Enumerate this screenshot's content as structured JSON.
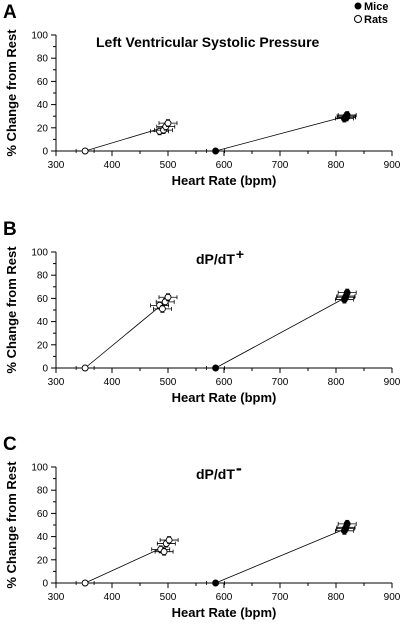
{
  "legend": [
    {
      "label": "Mice",
      "marker": "filled-circle"
    },
    {
      "label": "Rats",
      "marker": "open-circle"
    }
  ],
  "chart_data": [
    {
      "type": "scatter",
      "panel": "A",
      "title": "Left Ventricular Systolic Pressure",
      "title_sup": "",
      "xlabel": "Heart Rate (bpm)",
      "ylabel": "% Change from Rest",
      "xlim": [
        300,
        900
      ],
      "ylim": [
        0,
        100
      ],
      "xticks": [
        300,
        400,
        500,
        600,
        700,
        800,
        900
      ],
      "yticks": [
        0,
        20,
        40,
        60,
        80,
        100
      ],
      "series": [
        {
          "name": "Rats",
          "marker": "open",
          "points": [
            {
              "x": 352,
              "y": 0
            },
            {
              "x": 485,
              "y": 17
            },
            {
              "x": 492,
              "y": 18
            },
            {
              "x": 496,
              "y": 21
            },
            {
              "x": 500,
              "y": 24
            }
          ],
          "line": [
            {
              "x": 352,
              "y": 0
            },
            {
              "x": 497,
              "y": 21
            }
          ]
        },
        {
          "name": "Mice",
          "marker": "filled",
          "points": [
            {
              "x": 585,
              "y": 0
            },
            {
              "x": 815,
              "y": 28
            },
            {
              "x": 818,
              "y": 30
            },
            {
              "x": 820,
              "y": 31
            },
            {
              "x": 819,
              "y": 29
            }
          ],
          "line": [
            {
              "x": 585,
              "y": 0
            },
            {
              "x": 818,
              "y": 30
            }
          ]
        }
      ]
    },
    {
      "type": "scatter",
      "panel": "B",
      "title": "dP/dT",
      "title_sup": "+",
      "xlabel": "Heart Rate (bpm)",
      "ylabel": "% Change from Rest",
      "xlim": [
        300,
        900
      ],
      "ylim": [
        0,
        100
      ],
      "xticks": [
        300,
        400,
        500,
        600,
        700,
        800,
        900
      ],
      "yticks": [
        0,
        20,
        40,
        60,
        80,
        100
      ],
      "series": [
        {
          "name": "Rats",
          "marker": "open",
          "points": [
            {
              "x": 352,
              "y": 0
            },
            {
              "x": 485,
              "y": 54
            },
            {
              "x": 490,
              "y": 51
            },
            {
              "x": 495,
              "y": 57
            },
            {
              "x": 500,
              "y": 61
            }
          ],
          "line": [
            {
              "x": 352,
              "y": 0
            },
            {
              "x": 495,
              "y": 57
            }
          ]
        },
        {
          "name": "Mice",
          "marker": "filled",
          "points": [
            {
              "x": 585,
              "y": 0
            },
            {
              "x": 815,
              "y": 59
            },
            {
              "x": 818,
              "y": 62
            },
            {
              "x": 820,
              "y": 65
            },
            {
              "x": 817,
              "y": 61
            }
          ],
          "line": [
            {
              "x": 585,
              "y": 0
            },
            {
              "x": 818,
              "y": 61
            }
          ]
        }
      ]
    },
    {
      "type": "scatter",
      "panel": "C",
      "title": "dP/dT",
      "title_sup": "-",
      "xlabel": "Heart Rate (bpm)",
      "ylabel": "% Change from Rest",
      "xlim": [
        300,
        900
      ],
      "ylim": [
        0,
        100
      ],
      "xticks": [
        300,
        400,
        500,
        600,
        700,
        800,
        900
      ],
      "yticks": [
        0,
        20,
        40,
        60,
        80,
        100
      ],
      "series": [
        {
          "name": "Rats",
          "marker": "open",
          "points": [
            {
              "x": 352,
              "y": 0
            },
            {
              "x": 487,
              "y": 29
            },
            {
              "x": 493,
              "y": 27
            },
            {
              "x": 497,
              "y": 34
            },
            {
              "x": 502,
              "y": 37
            }
          ],
          "line": [
            {
              "x": 352,
              "y": 0
            },
            {
              "x": 497,
              "y": 32
            }
          ]
        },
        {
          "name": "Mice",
          "marker": "filled",
          "points": [
            {
              "x": 585,
              "y": 0
            },
            {
              "x": 815,
              "y": 45
            },
            {
              "x": 818,
              "y": 48
            },
            {
              "x": 820,
              "y": 51
            },
            {
              "x": 817,
              "y": 47
            }
          ],
          "line": [
            {
              "x": 585,
              "y": 0
            },
            {
              "x": 818,
              "y": 47
            }
          ]
        }
      ]
    }
  ]
}
